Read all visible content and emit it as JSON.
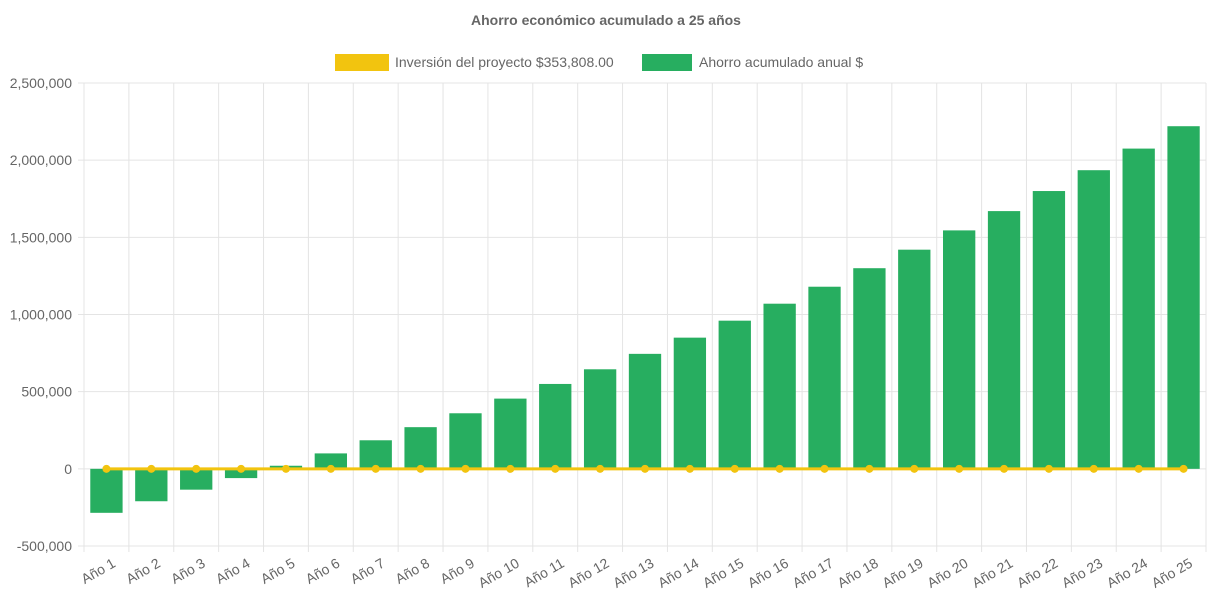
{
  "chart_data": {
    "type": "bar",
    "title": "Ahorro económico acumulado a 25 años",
    "categories": [
      "Año 1",
      "Año 2",
      "Año 3",
      "Año 4",
      "Año 5",
      "Año 6",
      "Año 7",
      "Año 8",
      "Año 9",
      "Año 10",
      "Año 11",
      "Año 12",
      "Año 13",
      "Año 14",
      "Año 15",
      "Año 16",
      "Año 17",
      "Año 18",
      "Año 19",
      "Año 20",
      "Año 21",
      "Año 22",
      "Año 23",
      "Año 24",
      "Año 25"
    ],
    "series": [
      {
        "name": "Inversión del proyecto $353,808.00",
        "type": "line",
        "color": "#f2c40f",
        "values": [
          0,
          0,
          0,
          0,
          0,
          0,
          0,
          0,
          0,
          0,
          0,
          0,
          0,
          0,
          0,
          0,
          0,
          0,
          0,
          0,
          0,
          0,
          0,
          0,
          0
        ]
      },
      {
        "name": "Ahorro acumulado anual $",
        "type": "bar",
        "color": "#27ae60",
        "values": [
          -285000,
          -210000,
          -135000,
          -60000,
          20000,
          100000,
          185000,
          270000,
          360000,
          455000,
          550000,
          645000,
          745000,
          850000,
          960000,
          1070000,
          1180000,
          1300000,
          1420000,
          1545000,
          1670000,
          1800000,
          1935000,
          2075000,
          2220000
        ]
      }
    ],
    "yticks": [
      "2,500,000",
      "2,000,000",
      "1,500,000",
      "1,000,000",
      "500,000",
      "0",
      "-500,000"
    ],
    "ylim": [
      -500000,
      2500000
    ],
    "legend_position": "top",
    "grid": true
  }
}
